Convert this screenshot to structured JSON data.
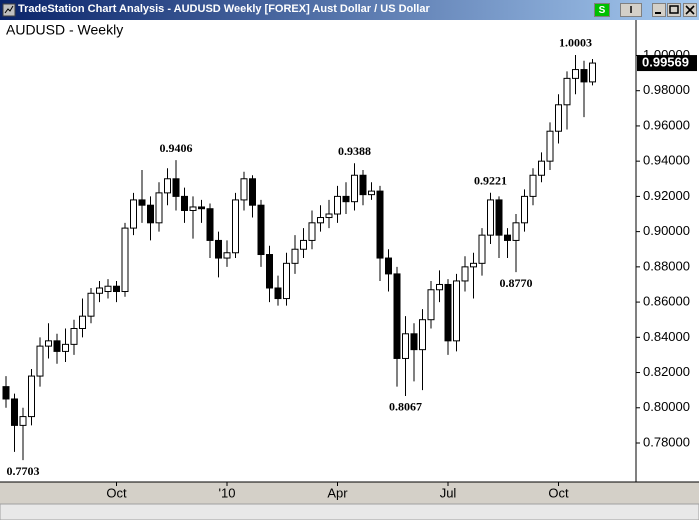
{
  "window": {
    "title": "TradeStation Chart Analysis - AUDUSD Weekly [FOREX] Aust Dollar / US Dollar",
    "buttons": [
      "S",
      "I"
    ]
  },
  "chart_data": {
    "type": "candlestick",
    "title": "AUDUSD - Weekly",
    "categories": [
      null,
      null,
      null,
      null,
      null,
      null,
      null,
      null,
      null,
      null,
      null,
      null,
      null,
      "Oct",
      null,
      null,
      null,
      null,
      null,
      null,
      null,
      null,
      null,
      null,
      null,
      null,
      "'10",
      null,
      null,
      null,
      null,
      null,
      null,
      null,
      null,
      null,
      null,
      null,
      null,
      "Apr",
      null,
      null,
      null,
      null,
      null,
      null,
      null,
      null,
      null,
      null,
      null,
      null,
      "Jul",
      null,
      null,
      null,
      null,
      null,
      null,
      null,
      null,
      null,
      null,
      null,
      null,
      "Oct",
      null,
      null,
      null,
      null
    ],
    "open": [
      0.812,
      0.805,
      0.79,
      0.795,
      0.818,
      0.835,
      0.838,
      0.832,
      0.836,
      0.845,
      0.852,
      0.865,
      0.866,
      0.869,
      0.866,
      0.902,
      0.918,
      0.915,
      0.905,
      0.922,
      0.93,
      0.92,
      0.912,
      0.914,
      0.913,
      0.895,
      0.885,
      0.888,
      0.918,
      0.93,
      0.915,
      0.887,
      0.868,
      0.862,
      0.882,
      0.89,
      0.895,
      0.905,
      0.908,
      0.91,
      0.92,
      0.917,
      0.932,
      0.921,
      0.923,
      0.885,
      0.876,
      0.828,
      0.842,
      0.833,
      0.85,
      0.867,
      0.87,
      0.838,
      0.872,
      0.88,
      0.882,
      0.898,
      0.918,
      0.898,
      0.895,
      0.905,
      0.92,
      0.932,
      0.94,
      0.957,
      0.972,
      0.987,
      0.992,
      0.985
    ],
    "high": [
      0.818,
      0.808,
      0.8,
      0.822,
      0.84,
      0.848,
      0.842,
      0.845,
      0.85,
      0.862,
      0.868,
      0.872,
      0.873,
      0.872,
      0.905,
      0.922,
      0.935,
      0.92,
      0.928,
      0.936,
      0.9406,
      0.925,
      0.92,
      0.918,
      0.916,
      0.9,
      0.895,
      0.922,
      0.934,
      0.932,
      0.918,
      0.892,
      0.875,
      0.888,
      0.898,
      0.902,
      0.912,
      0.915,
      0.918,
      0.926,
      0.928,
      0.9388,
      0.935,
      0.928,
      0.926,
      0.89,
      0.88,
      0.852,
      0.848,
      0.856,
      0.872,
      0.878,
      0.873,
      0.876,
      0.886,
      0.888,
      0.902,
      0.9221,
      0.92,
      0.902,
      0.91,
      0.924,
      0.936,
      0.945,
      0.962,
      0.978,
      0.991,
      1.0003,
      0.997,
      0.998
    ],
    "low": [
      0.8,
      0.775,
      0.7703,
      0.79,
      0.812,
      0.828,
      0.825,
      0.826,
      0.83,
      0.84,
      0.848,
      0.86,
      0.862,
      0.86,
      0.863,
      0.898,
      0.905,
      0.895,
      0.9,
      0.915,
      0.912,
      0.905,
      0.896,
      0.905,
      0.885,
      0.874,
      0.88,
      0.885,
      0.912,
      0.908,
      0.88,
      0.86,
      0.858,
      0.858,
      0.876,
      0.885,
      0.89,
      0.9,
      0.902,
      0.905,
      0.91,
      0.912,
      0.915,
      0.918,
      0.872,
      0.866,
      0.812,
      0.8067,
      0.815,
      0.81,
      0.845,
      0.86,
      0.83,
      0.832,
      0.866,
      0.862,
      0.875,
      0.893,
      0.885,
      0.885,
      0.877,
      0.9,
      0.915,
      0.928,
      0.935,
      0.95,
      0.958,
      0.978,
      0.965,
      0.983
    ],
    "close": [
      0.805,
      0.79,
      0.795,
      0.818,
      0.835,
      0.838,
      0.832,
      0.836,
      0.845,
      0.852,
      0.865,
      0.868,
      0.869,
      0.866,
      0.902,
      0.918,
      0.915,
      0.905,
      0.922,
      0.93,
      0.92,
      0.912,
      0.914,
      0.913,
      0.895,
      0.885,
      0.888,
      0.918,
      0.93,
      0.915,
      0.887,
      0.868,
      0.862,
      0.882,
      0.89,
      0.895,
      0.905,
      0.908,
      0.91,
      0.92,
      0.917,
      0.932,
      0.921,
      0.923,
      0.885,
      0.876,
      0.828,
      0.842,
      0.833,
      0.85,
      0.867,
      0.87,
      0.838,
      0.872,
      0.88,
      0.882,
      0.898,
      0.918,
      0.898,
      0.895,
      0.905,
      0.92,
      0.932,
      0.94,
      0.957,
      0.972,
      0.987,
      0.992,
      0.985,
      0.99569
    ],
    "high_labels": [
      null,
      null,
      null,
      null,
      null,
      null,
      null,
      null,
      null,
      null,
      null,
      null,
      null,
      null,
      null,
      null,
      null,
      null,
      null,
      null,
      "0.9406",
      null,
      null,
      null,
      null,
      null,
      null,
      null,
      null,
      null,
      null,
      null,
      null,
      null,
      null,
      null,
      null,
      null,
      null,
      null,
      null,
      "0.9388",
      null,
      null,
      null,
      null,
      null,
      null,
      null,
      null,
      null,
      null,
      null,
      null,
      null,
      null,
      null,
      "0.9221",
      null,
      null,
      null,
      null,
      null,
      null,
      null,
      null,
      null,
      "1.0003",
      null,
      null
    ],
    "low_labels": [
      null,
      null,
      "0.7703",
      null,
      null,
      null,
      null,
      null,
      null,
      null,
      null,
      null,
      null,
      null,
      null,
      null,
      null,
      null,
      null,
      null,
      null,
      null,
      null,
      null,
      null,
      null,
      null,
      null,
      null,
      null,
      null,
      null,
      null,
      null,
      null,
      null,
      null,
      null,
      null,
      null,
      null,
      null,
      null,
      null,
      null,
      null,
      null,
      "0.8067",
      null,
      null,
      null,
      null,
      null,
      null,
      null,
      null,
      null,
      null,
      null,
      null,
      "0.8770",
      null,
      null,
      null,
      null,
      null,
      null,
      null,
      null,
      null
    ],
    "ylim": [
      0.759,
      1.019
    ],
    "yticks": [
      {
        "value": 0.78,
        "label": "0.78000"
      },
      {
        "value": 0.8,
        "label": "0.80000"
      },
      {
        "value": 0.82,
        "label": "0.82000"
      },
      {
        "value": 0.84,
        "label": "0.84000"
      },
      {
        "value": 0.86,
        "label": "0.86000"
      },
      {
        "value": 0.88,
        "label": "0.88000"
      },
      {
        "value": 0.9,
        "label": "0.90000"
      },
      {
        "value": 0.92,
        "label": "0.92000"
      },
      {
        "value": 0.94,
        "label": "0.94000"
      },
      {
        "value": 0.96,
        "label": "0.96000"
      },
      {
        "value": 0.98,
        "label": "0.98000"
      },
      {
        "value": 1.0,
        "label": "1.00000"
      }
    ],
    "grid": false,
    "up_color": "#ffffff",
    "down_color": "#000000"
  }
}
